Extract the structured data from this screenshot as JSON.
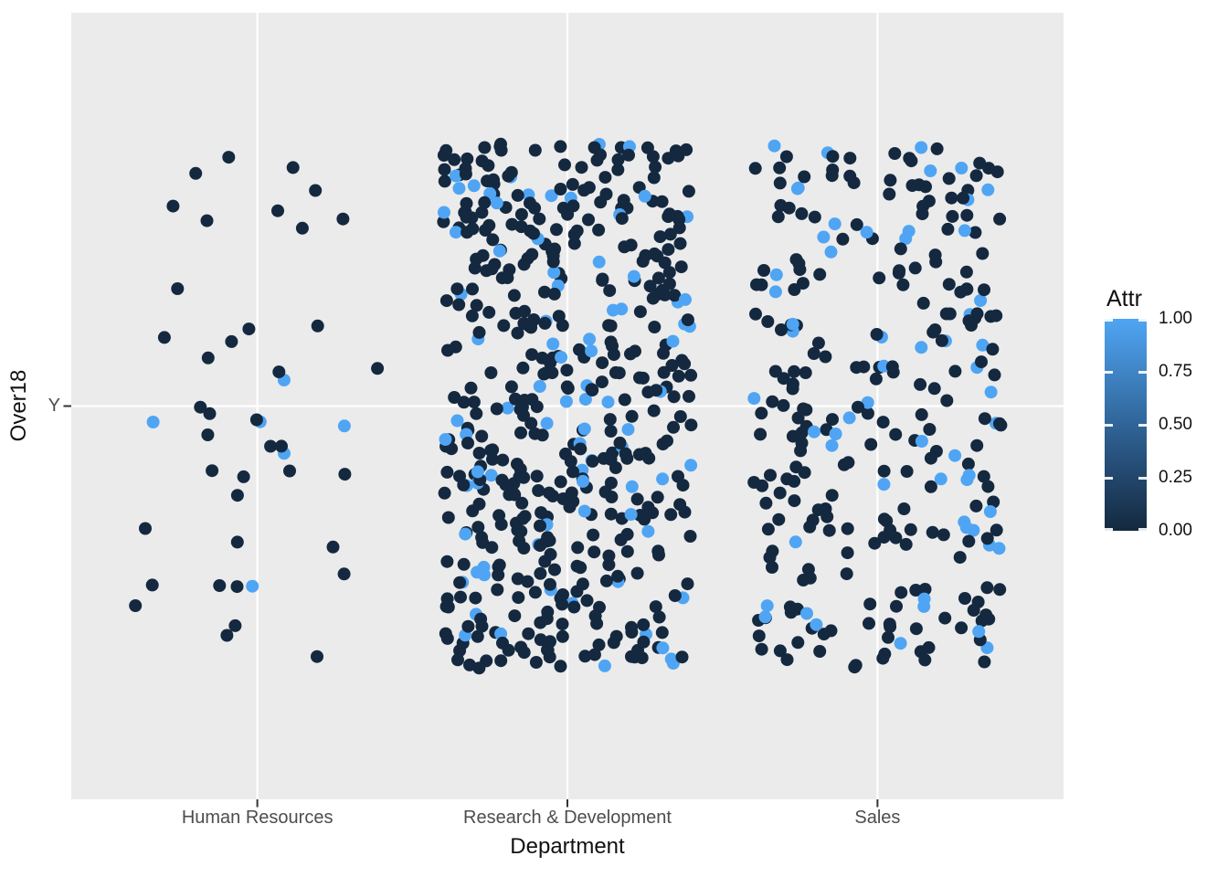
{
  "chart_data": {
    "type": "scatter",
    "subtype": "jitter-categorical",
    "title": "",
    "xlabel": "Department",
    "ylabel": "Over18",
    "x_categories": [
      "Human Resources",
      "Research & Development",
      "Sales"
    ],
    "y_categories": [
      "Y"
    ],
    "grid": "major-white-on-grey",
    "legend": {
      "title": "Attr",
      "style": "continuous-colorbar",
      "position": "right",
      "tick_labels": [
        "1.00",
        "0.75",
        "0.50",
        "0.25",
        "0.00"
      ],
      "tick_values": [
        1.0,
        0.75,
        0.5,
        0.25,
        0.0
      ],
      "high_color": "#4FA5F3",
      "low_color": "#14293F"
    },
    "points": {
      "note": "All points have Over18 = 'Y'; colour encodes Attr value 0 (dark) or 1 (light blue); positions jittered",
      "groups": [
        {
          "category": "Human Resources",
          "count": 45,
          "attr1_fraction": 0.14
        },
        {
          "category": "Research & Development",
          "count": 520,
          "attr1_fraction": 0.16
        },
        {
          "category": "Sales",
          "count": 290,
          "attr1_fraction": 0.2
        }
      ],
      "jitter_width_units": 0.4,
      "jitter_height_units": 0.4,
      "point_radius_px": 7,
      "seed": 11
    },
    "panel": {
      "background": "#EBEBEB",
      "gridline_color": "#FFFFFF",
      "axis_text_color": "#4D4D4D",
      "axis_title_color": "#111111",
      "tick_mark_color": "#333333"
    }
  }
}
